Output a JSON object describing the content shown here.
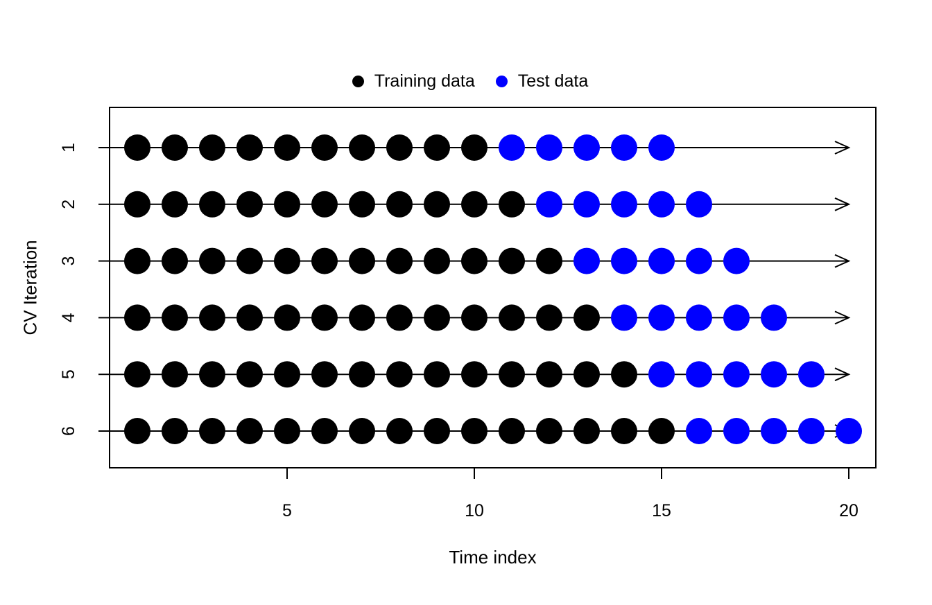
{
  "figure": {
    "background": "#ffffff",
    "axis_color": "#000000"
  },
  "legend": {
    "items": [
      {
        "label": "Training data",
        "color": "#000000"
      },
      {
        "label": "Test data",
        "color": "#0000FF"
      }
    ]
  },
  "chart_data": {
    "type": "scatter",
    "title": "",
    "xlabel": "Time index",
    "ylabel": "CV Iteration",
    "legend_position": "top",
    "x_ticks": [
      5,
      10,
      15,
      20
    ],
    "y_ticks": [
      1,
      2,
      3,
      4,
      5,
      6
    ],
    "x_range": [
      0.2,
      20.8
    ],
    "arrow_end_x": 20,
    "train_color": "#000000",
    "test_color": "#0000FF",
    "iterations": [
      {
        "cv": 1,
        "train": [
          1,
          2,
          3,
          4,
          5,
          6,
          7,
          8,
          9,
          10
        ],
        "test": [
          11,
          12,
          13,
          14,
          15
        ]
      },
      {
        "cv": 2,
        "train": [
          1,
          2,
          3,
          4,
          5,
          6,
          7,
          8,
          9,
          10,
          11
        ],
        "test": [
          12,
          13,
          14,
          15,
          16
        ]
      },
      {
        "cv": 3,
        "train": [
          1,
          2,
          3,
          4,
          5,
          6,
          7,
          8,
          9,
          10,
          11,
          12
        ],
        "test": [
          13,
          14,
          15,
          16,
          17
        ]
      },
      {
        "cv": 4,
        "train": [
          1,
          2,
          3,
          4,
          5,
          6,
          7,
          8,
          9,
          10,
          11,
          12,
          13
        ],
        "test": [
          14,
          15,
          16,
          17,
          18
        ]
      },
      {
        "cv": 5,
        "train": [
          1,
          2,
          3,
          4,
          5,
          6,
          7,
          8,
          9,
          10,
          11,
          12,
          13,
          14
        ],
        "test": [
          15,
          16,
          17,
          18,
          19
        ]
      },
      {
        "cv": 6,
        "train": [
          1,
          2,
          3,
          4,
          5,
          6,
          7,
          8,
          9,
          10,
          11,
          12,
          13,
          14,
          15
        ],
        "test": [
          16,
          17,
          18,
          19,
          20
        ]
      }
    ],
    "series": [
      {
        "name": "Training data",
        "color": "#000000"
      },
      {
        "name": "Test data",
        "color": "#0000FF"
      }
    ]
  }
}
